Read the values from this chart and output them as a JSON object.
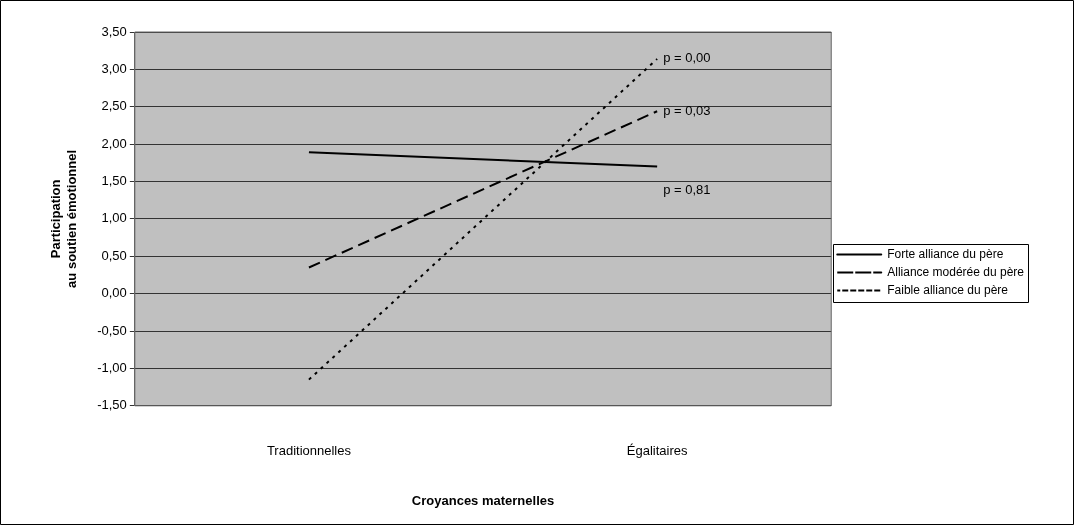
{
  "chart_data": {
    "type": "line",
    "xlabel": "Croyances maternelles",
    "ylabel": "Participation\nau soutien émotionnel",
    "categories": [
      "Traditionnelles",
      "Égalitaires"
    ],
    "series": [
      {
        "name": "Forte alliance du père",
        "color": "#000000",
        "line_style": "solid",
        "values": [
          1.89,
          1.7
        ]
      },
      {
        "name": "Alliance modérée du père",
        "color": "#000000",
        "line_style": "dashed",
        "values": [
          0.35,
          2.44
        ]
      },
      {
        "name": "Faible alliance du père",
        "color": "#000000",
        "line_style": "dotted",
        "values": [
          -1.15,
          3.14
        ]
      }
    ],
    "ylim": [
      -1.5,
      3.5
    ],
    "yticks": [
      {
        "value": -1.5,
        "label": "-1,50"
      },
      {
        "value": -1,
        "label": "-1,00"
      },
      {
        "value": -0.5,
        "label": "-0,50"
      },
      {
        "value": 0,
        "label": "0,00"
      },
      {
        "value": 0.5,
        "label": "0,50"
      },
      {
        "value": 1,
        "label": "1,00"
      },
      {
        "value": 1.5,
        "label": "1,50"
      },
      {
        "value": 2,
        "label": "2,00"
      },
      {
        "value": 2.5,
        "label": "2,50"
      },
      {
        "value": 3,
        "label": "3,00"
      },
      {
        "value": 3.5,
        "label": "3,50"
      }
    ],
    "grid": "y",
    "legend": "right",
    "marker": "none",
    "annotations": [
      {
        "text": "p = 0,00",
        "x": "Égalitaires",
        "y": 3.14
      },
      {
        "text": "p = 0,03",
        "x": "Égalitaires",
        "y": 2.44
      },
      {
        "text": "p = 0,81",
        "x": "Égalitaires",
        "y": 1.7
      }
    ]
  }
}
